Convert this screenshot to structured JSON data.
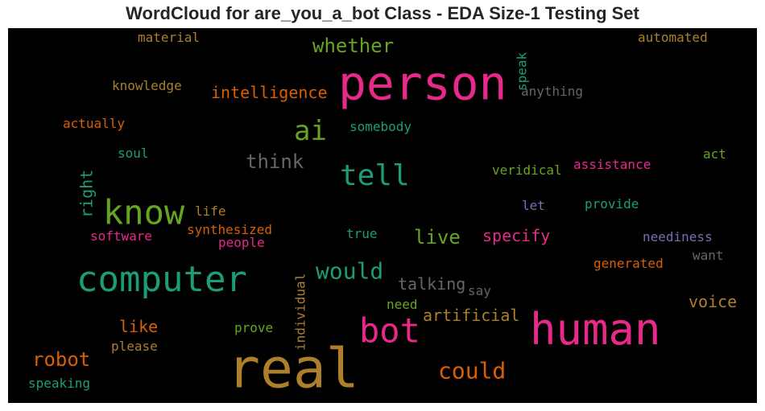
{
  "chart_data": {
    "type": "wordcloud",
    "title": "WordCloud for are_you_a_bot Class - EDA Size-1 Testing Set",
    "background": "#000000",
    "words": [
      {
        "text": "real",
        "color": "#ad7f2a",
        "rotated": false
      },
      {
        "text": "person",
        "color": "#e7298a",
        "rotated": false
      },
      {
        "text": "human",
        "color": "#e7298a",
        "rotated": false
      },
      {
        "text": "computer",
        "color": "#1b9e77",
        "rotated": false
      },
      {
        "text": "know",
        "color": "#66a61e",
        "rotated": false
      },
      {
        "text": "bot",
        "color": "#e7298a",
        "rotated": false
      },
      {
        "text": "tell",
        "color": "#1b9e77",
        "rotated": false
      },
      {
        "text": "ai",
        "color": "#66a61e",
        "rotated": false
      },
      {
        "text": "could",
        "color": "#d95f02",
        "rotated": false
      },
      {
        "text": "would",
        "color": "#1b9e77",
        "rotated": false
      },
      {
        "text": "whether",
        "color": "#66a61e",
        "rotated": false
      },
      {
        "text": "robot",
        "color": "#d95f02",
        "rotated": false
      },
      {
        "text": "think",
        "color": "#666666",
        "rotated": false
      },
      {
        "text": "live",
        "color": "#66a61e",
        "rotated": false
      },
      {
        "text": "intelligence",
        "color": "#d95f02",
        "rotated": false
      },
      {
        "text": "specify",
        "color": "#e7298a",
        "rotated": false
      },
      {
        "text": "artificial",
        "color": "#ad7f2a",
        "rotated": false
      },
      {
        "text": "talking",
        "color": "#666666",
        "rotated": false
      },
      {
        "text": "like",
        "color": "#d95f02",
        "rotated": false
      },
      {
        "text": "voice",
        "color": "#ad7f2a",
        "rotated": false
      },
      {
        "text": "right",
        "color": "#1b9e77",
        "rotated": true
      },
      {
        "text": "synthesized",
        "color": "#d95f02",
        "rotated": false
      },
      {
        "text": "assistance",
        "color": "#e7298a",
        "rotated": false
      },
      {
        "text": "veridical",
        "color": "#66a61e",
        "rotated": false
      },
      {
        "text": "provide",
        "color": "#1b9e77",
        "rotated": false
      },
      {
        "text": "neediness",
        "color": "#7570b3",
        "rotated": false
      },
      {
        "text": "generated",
        "color": "#d95f02",
        "rotated": false
      },
      {
        "text": "anything",
        "color": "#666666",
        "rotated": false
      },
      {
        "text": "somebody",
        "color": "#1b9e77",
        "rotated": false
      },
      {
        "text": "software",
        "color": "#e7298a",
        "rotated": false
      },
      {
        "text": "people",
        "color": "#e7298a",
        "rotated": false
      },
      {
        "text": "say",
        "color": "#666666",
        "rotated": false
      },
      {
        "text": "need",
        "color": "#66a61e",
        "rotated": false
      },
      {
        "text": "prove",
        "color": "#66a61e",
        "rotated": false
      },
      {
        "text": "please",
        "color": "#ad7f2a",
        "rotated": false
      },
      {
        "text": "speaking",
        "color": "#1b9e77",
        "rotated": false
      },
      {
        "text": "individual",
        "color": "#ad7f2a",
        "rotated": true
      },
      {
        "text": "speak",
        "color": "#1b9e77",
        "rotated": true
      },
      {
        "text": "knowledge",
        "color": "#ad7f2a",
        "rotated": false
      },
      {
        "text": "actually",
        "color": "#d95f02",
        "rotated": false
      },
      {
        "text": "material",
        "color": "#ad7f2a",
        "rotated": false
      },
      {
        "text": "automated",
        "color": "#ad7f2a",
        "rotated": false
      },
      {
        "text": "soul",
        "color": "#1b9e77",
        "rotated": false
      },
      {
        "text": "life",
        "color": "#ad7f2a",
        "rotated": false
      },
      {
        "text": "true",
        "color": "#1b9e77",
        "rotated": false
      },
      {
        "text": "let",
        "color": "#7570b3",
        "rotated": false
      },
      {
        "text": "act",
        "color": "#66a61e",
        "rotated": false
      },
      {
        "text": "want",
        "color": "#666666",
        "rotated": false
      }
    ]
  }
}
